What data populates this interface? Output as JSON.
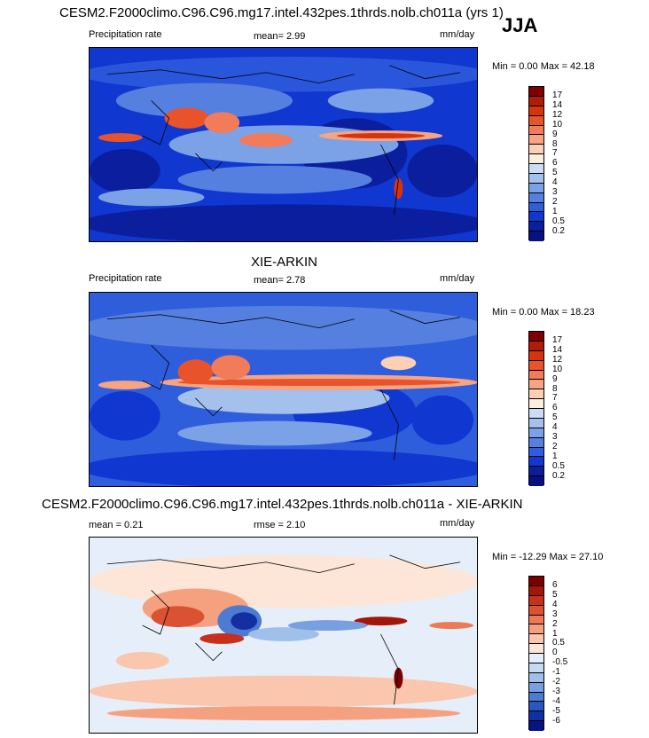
{
  "season": "JJA",
  "panels": [
    {
      "title": "CESM2.F2000climo.C96.C96.mg17.intel.432pes.1thrds.nolb.ch011a (yrs 1)",
      "left_label": "Precipitation rate",
      "center_label": "mean=  2.99",
      "units": "mm/day",
      "minmax": "Min =  0.00 Max =  42.18",
      "colorbar_labels": [
        "17",
        "14",
        "12",
        "10",
        "9",
        "8",
        "7",
        "6",
        "5",
        "4",
        "3",
        "2",
        "1",
        "0.5",
        "0.2"
      ],
      "colors": [
        "#7f0000",
        "#b01c06",
        "#d6330f",
        "#e8532b",
        "#f27b59",
        "#f7a483",
        "#fbd0b5",
        "#fbeedf",
        "#cbdcf4",
        "#a4c1ee",
        "#7ba2e6",
        "#5580e0",
        "#2f5edd",
        "#1037cf",
        "#0a1e9e",
        "#061080"
      ]
    },
    {
      "title": "XIE-ARKIN",
      "left_label": "Precipitation rate",
      "center_label": "mean=  2.78",
      "units": "mm/day",
      "minmax": "Min =  0.00 Max =  18.23",
      "colorbar_labels": [
        "17",
        "14",
        "12",
        "10",
        "9",
        "8",
        "7",
        "6",
        "5",
        "4",
        "3",
        "2",
        "1",
        "0.5",
        "0.2"
      ],
      "colors": [
        "#7f0000",
        "#b01c06",
        "#d6330f",
        "#e8532b",
        "#f27b59",
        "#f7a483",
        "#fbd0b5",
        "#fbeedf",
        "#cbdcf4",
        "#a4c1ee",
        "#7ba2e6",
        "#5580e0",
        "#2f5edd",
        "#1037cf",
        "#0a1e9e",
        "#061080"
      ]
    },
    {
      "title": "CESM2.F2000climo.C96.C96.mg17.intel.432pes.1thrds.nolb.ch011a - XIE-ARKIN",
      "left_label": "mean =  0.21",
      "center_label": "rmse =  2.10",
      "units": "mm/day",
      "minmax": "Min = -12.29 Max =  27.10",
      "colorbar_labels": [
        "6",
        "5",
        "4",
        "3",
        "2",
        "1",
        "0.5",
        "0",
        "-0.5",
        "-1",
        "-2",
        "-3",
        "-4",
        "-5",
        "-6"
      ],
      "colors": [
        "#7a0000",
        "#a3160a",
        "#c6301c",
        "#db5232",
        "#ec7a56",
        "#f5a07e",
        "#fac6ad",
        "#fde6d8",
        "#e6eef9",
        "#c6daf2",
        "#9fc0ea",
        "#789fdf",
        "#4d7bd2",
        "#2a56c0",
        "#1230a2",
        "#061580"
      ]
    }
  ]
}
